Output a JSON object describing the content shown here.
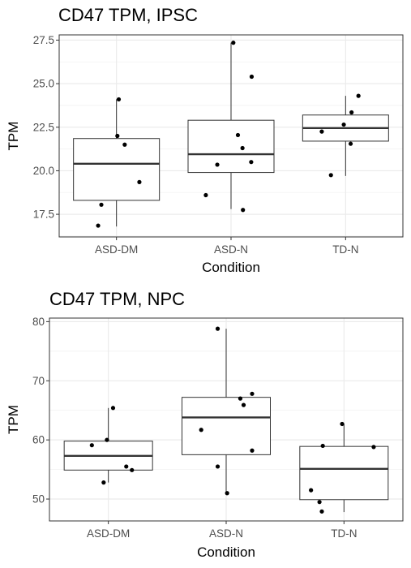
{
  "chart_data": [
    {
      "type": "box",
      "title": "CD47 TPM, IPSC",
      "xlabel": "Condition",
      "ylabel": "TPM",
      "categories": [
        "ASD-DM",
        "ASD-N",
        "TD-N"
      ],
      "ylim": [
        16.2,
        27.8
      ],
      "yticks": [
        17.5,
        20.0,
        22.5,
        25.0,
        27.5
      ],
      "ytick_labels": [
        "17.5",
        "20.0",
        "22.5",
        "25.0",
        "27.5"
      ],
      "grid": true,
      "boxes": [
        {
          "category": "ASD-DM",
          "whisker_low": 16.8,
          "q1": 18.3,
          "median": 20.4,
          "q3": 21.85,
          "whisker_high": 24.1
        },
        {
          "category": "ASD-N",
          "whisker_low": 17.8,
          "q1": 19.9,
          "median": 20.95,
          "q3": 22.9,
          "whisker_high": 27.35
        },
        {
          "category": "TD-N",
          "whisker_low": 19.7,
          "q1": 21.7,
          "median": 22.45,
          "q3": 23.2,
          "whisker_high": 24.3
        }
      ],
      "points": [
        {
          "category": "ASD-DM",
          "dx": 0.05,
          "y": 24.1
        },
        {
          "category": "ASD-DM",
          "dx": 0.02,
          "y": 22.0
        },
        {
          "category": "ASD-DM",
          "dx": 0.18,
          "y": 21.5
        },
        {
          "category": "ASD-DM",
          "dx": 0.5,
          "y": 19.35
        },
        {
          "category": "ASD-DM",
          "dx": -0.33,
          "y": 18.05
        },
        {
          "category": "ASD-DM",
          "dx": -0.4,
          "y": 16.85
        },
        {
          "category": "ASD-N",
          "dx": 0.05,
          "y": 27.35
        },
        {
          "category": "ASD-N",
          "dx": 0.45,
          "y": 25.4
        },
        {
          "category": "ASD-N",
          "dx": 0.15,
          "y": 22.05
        },
        {
          "category": "ASD-N",
          "dx": 0.25,
          "y": 21.3
        },
        {
          "category": "ASD-N",
          "dx": 0.44,
          "y": 20.5
        },
        {
          "category": "ASD-N",
          "dx": -0.3,
          "y": 20.35
        },
        {
          "category": "ASD-N",
          "dx": -0.55,
          "y": 18.6
        },
        {
          "category": "ASD-N",
          "dx": 0.26,
          "y": 17.75
        },
        {
          "category": "TD-N",
          "dx": 0.28,
          "y": 24.3
        },
        {
          "category": "TD-N",
          "dx": 0.13,
          "y": 23.35
        },
        {
          "category": "TD-N",
          "dx": -0.04,
          "y": 22.65
        },
        {
          "category": "TD-N",
          "dx": -0.52,
          "y": 22.25
        },
        {
          "category": "TD-N",
          "dx": 0.11,
          "y": 21.55
        },
        {
          "category": "TD-N",
          "dx": -0.32,
          "y": 19.75
        }
      ]
    },
    {
      "type": "box",
      "title": "CD47 TPM, NPC",
      "xlabel": "Condition",
      "ylabel": "TPM",
      "categories": [
        "ASD-DM",
        "ASD-N",
        "TD-N"
      ],
      "ylim": [
        46.3,
        80.6
      ],
      "yticks": [
        50,
        60,
        70,
        80
      ],
      "ytick_labels": [
        "50",
        "60",
        "70",
        "80"
      ],
      "grid": true,
      "boxes": [
        {
          "category": "ASD-DM",
          "whisker_low": 52.8,
          "q1": 54.9,
          "median": 57.3,
          "q3": 59.8,
          "whisker_high": 65.4
        },
        {
          "category": "ASD-N",
          "whisker_low": 51.0,
          "q1": 57.5,
          "median": 63.8,
          "q3": 67.2,
          "whisker_high": 78.8
        },
        {
          "category": "TD-N",
          "whisker_low": 47.8,
          "q1": 49.9,
          "median": 55.1,
          "q3": 58.9,
          "whisker_high": 62.7
        }
      ],
      "points": [
        {
          "category": "ASD-DM",
          "dx": 0.1,
          "y": 65.4
        },
        {
          "category": "ASD-DM",
          "dx": -0.03,
          "y": 60.0
        },
        {
          "category": "ASD-DM",
          "dx": -0.35,
          "y": 59.1
        },
        {
          "category": "ASD-DM",
          "dx": 0.38,
          "y": 55.5
        },
        {
          "category": "ASD-DM",
          "dx": 0.5,
          "y": 54.9
        },
        {
          "category": "ASD-DM",
          "dx": -0.1,
          "y": 52.8
        },
        {
          "category": "ASD-N",
          "dx": -0.18,
          "y": 78.8
        },
        {
          "category": "ASD-N",
          "dx": 0.55,
          "y": 67.8
        },
        {
          "category": "ASD-N",
          "dx": 0.3,
          "y": 67.0
        },
        {
          "category": "ASD-N",
          "dx": 0.37,
          "y": 65.9
        },
        {
          "category": "ASD-N",
          "dx": -0.53,
          "y": 61.7
        },
        {
          "category": "ASD-N",
          "dx": 0.55,
          "y": 58.2
        },
        {
          "category": "ASD-N",
          "dx": -0.18,
          "y": 55.5
        },
        {
          "category": "ASD-N",
          "dx": 0.02,
          "y": 51.0
        },
        {
          "category": "TD-N",
          "dx": -0.04,
          "y": 62.7
        },
        {
          "category": "TD-N",
          "dx": -0.45,
          "y": 59.0
        },
        {
          "category": "TD-N",
          "dx": 0.63,
          "y": 58.8
        },
        {
          "category": "TD-N",
          "dx": -0.7,
          "y": 51.5
        },
        {
          "category": "TD-N",
          "dx": -0.52,
          "y": 49.5
        },
        {
          "category": "TD-N",
          "dx": -0.47,
          "y": 47.9
        }
      ]
    }
  ]
}
